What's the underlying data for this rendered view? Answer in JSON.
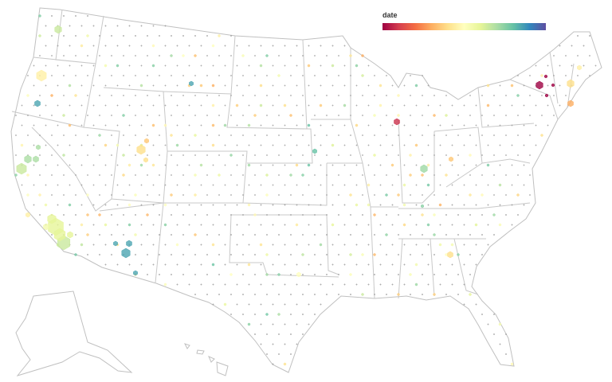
{
  "legend": {
    "title": "date",
    "colors": [
      "#9e0142",
      "#d53e4f",
      "#f46d43",
      "#fdae61",
      "#fee08b",
      "#ffffbf",
      "#e6f598",
      "#abdda4",
      "#66c2a5",
      "#3288bd",
      "#5e4fa2"
    ]
  }
}
